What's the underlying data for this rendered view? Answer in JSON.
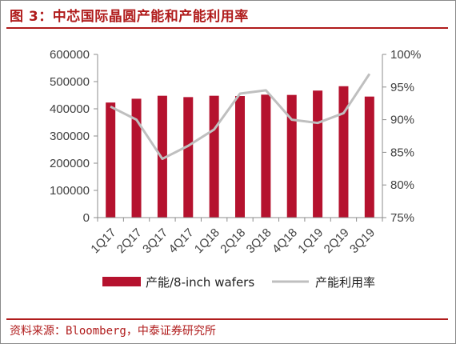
{
  "header": {
    "title": "图 3：中芯国际晶圆产能和产能利用率"
  },
  "footer": {
    "source": "资料来源：Bloomberg，中泰证券研究所"
  },
  "chart_data": {
    "type": "bar",
    "categories": [
      "1Q17",
      "2Q17",
      "3Q17",
      "4Q17",
      "1Q18",
      "2Q18",
      "3Q18",
      "4Q18",
      "1Q19",
      "2Q19",
      "3Q19"
    ],
    "series": [
      {
        "name": "产能/8-inch wafers",
        "type": "bar",
        "axis": "left",
        "color": "#b5122e",
        "values": [
          423000,
          437000,
          448000,
          443000,
          448000,
          447000,
          452000,
          451000,
          467000,
          483000,
          445000
        ]
      },
      {
        "name": "产能利用率",
        "type": "line",
        "axis": "right",
        "color": "#bfbfbf",
        "values": [
          92.0,
          90.0,
          84.0,
          86.0,
          88.5,
          94.0,
          94.5,
          90.0,
          89.5,
          91.0,
          97.0
        ]
      }
    ],
    "y_left": {
      "min": 0,
      "max": 600000,
      "ticks": [
        "0",
        "100000",
        "200000",
        "300000",
        "400000",
        "500000",
        "600000"
      ]
    },
    "y_right": {
      "min": 75,
      "max": 100,
      "ticks": [
        "75%",
        "80%",
        "85%",
        "90%",
        "95%",
        "100%"
      ]
    },
    "grid": false,
    "legend_position": "bottom"
  }
}
